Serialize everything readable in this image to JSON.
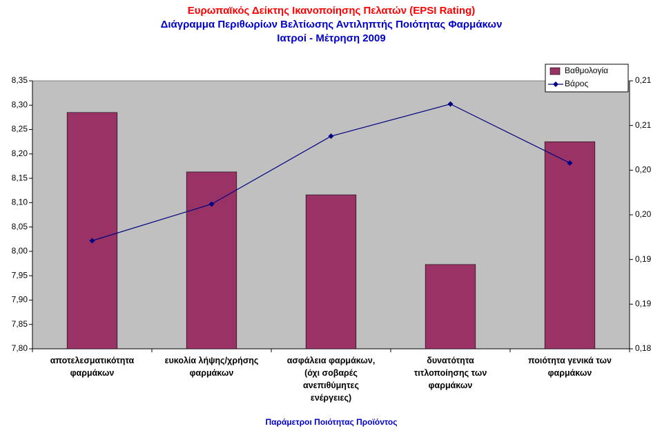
{
  "chart_data": {
    "type": "bar_line",
    "title": "Ευρωπαϊκός Δείκτης Ικανοποίησης Πελατών (EPSI Rating)",
    "subtitle": "Διάγραμμα Περιθωρίων Βελτίωσης Αντιληπτής Ποιότητας Φαρμάκων",
    "subtitle2": "Ιατροί - Μέτρηση 2009",
    "x_label": "Παράμετροι Ποιότητας Προϊόντος",
    "categories": [
      "αποτελεσματικότητα φαρμάκων",
      "ευκολία λήψης/χρήσης φαρμάκων",
      "ασφάλεια φαρμάκων, (όχι σοβαρές ανεπιθύμητες ενέργειες)",
      "δυνατότητα τιτλοποίησης των φαρμάκων",
      "ποιότητα γενικά των φαρμάκων"
    ],
    "series": [
      {
        "name": "Βαθμολογία",
        "type": "bar",
        "color": "#993366",
        "values": [
          8.285,
          8.163,
          8.116,
          7.973,
          8.225
        ]
      },
      {
        "name": "Βάρος",
        "type": "line",
        "axis": "y2",
        "color": "#000080",
        "values": [
          0.1921,
          0.1962,
          0.2038,
          0.2074,
          0.2008
        ]
      }
    ],
    "ylim": [
      7.8,
      8.35
    ],
    "yticks": [
      {
        "value": 7.8,
        "label": "7,80"
      },
      {
        "value": 7.85,
        "label": "7,85"
      },
      {
        "value": 7.9,
        "label": "7,90"
      },
      {
        "value": 7.95,
        "label": "7,95"
      },
      {
        "value": 8.0,
        "label": "8,00"
      },
      {
        "value": 8.05,
        "label": "8,05"
      },
      {
        "value": 8.1,
        "label": "8,10"
      },
      {
        "value": 8.15,
        "label": "8,15"
      },
      {
        "value": 8.2,
        "label": "8,20"
      },
      {
        "value": 8.25,
        "label": "8,25"
      },
      {
        "value": 8.3,
        "label": "8,30"
      },
      {
        "value": 8.35,
        "label": "8,35"
      }
    ],
    "y2lim": [
      0.18,
      0.21
    ],
    "y2ticks": [
      {
        "value": 0.18,
        "label": "0,18"
      },
      {
        "value": 0.185,
        "label": "0,19"
      },
      {
        "value": 0.19,
        "label": "0,19"
      },
      {
        "value": 0.195,
        "label": "0,20"
      },
      {
        "value": 0.2,
        "label": "0,20"
      },
      {
        "value": 0.205,
        "label": "0,21"
      },
      {
        "value": 0.21,
        "label": "0,21"
      }
    ],
    "legend": "top-right",
    "plot_background": "#c0c0c0"
  }
}
